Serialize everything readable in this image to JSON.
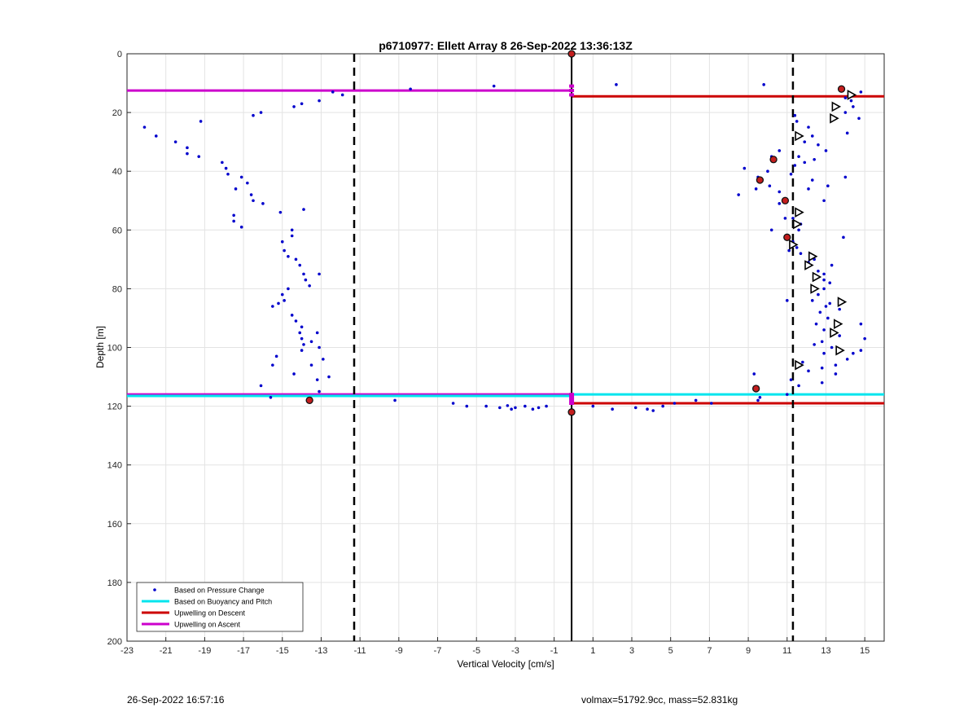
{
  "footer": {
    "timestamp": "26-Sep-2022 16:57:16",
    "volmax_mass": "volmax=51792.9cc, mass=52.831kg"
  },
  "chart_data": {
    "type": "scatter",
    "title": "p6710977: Ellett Array 8 26-Sep-2022 13:36:13Z",
    "xlabel": "Vertical Velocity [cm/s]",
    "ylabel": "Depth [m]",
    "xlim": [
      -23,
      16
    ],
    "ylim": [
      0,
      200
    ],
    "y_reversed": true,
    "grid": true,
    "xticks": [
      -23,
      -21,
      -19,
      -17,
      -15,
      -13,
      -11,
      -9,
      -7,
      -5,
      -3,
      -1,
      1,
      3,
      5,
      7,
      9,
      11,
      13,
      15
    ],
    "yticks": [
      0,
      20,
      40,
      60,
      80,
      100,
      120,
      140,
      160,
      180,
      200
    ],
    "legend": {
      "placement": "bottom-left",
      "entries": [
        {
          "label": "Based on Pressure Change",
          "color": "#0000cc",
          "style": "dot"
        },
        {
          "label": "Based on Buoyancy and Pitch",
          "color": "#00e5ee",
          "style": "line"
        },
        {
          "label": "Upwelling on Descent",
          "color": "#cc0000",
          "style": "line"
        },
        {
          "label": "Upwelling on Ascent",
          "color": "#cc00cc",
          "style": "line"
        }
      ]
    },
    "colors": {
      "pressure": "#0000cc",
      "buoyancy": "#00e5ee",
      "descent": "#cc0000",
      "ascent": "#cc00cc"
    },
    "pressure_points": [
      [
        -22.1,
        25
      ],
      [
        -21.5,
        28
      ],
      [
        -20.5,
        30
      ],
      [
        -19.9,
        32
      ],
      [
        -19.9,
        34
      ],
      [
        -19.3,
        35
      ],
      [
        -19.2,
        23
      ],
      [
        -18.1,
        37
      ],
      [
        -17.9,
        39
      ],
      [
        -17.8,
        41
      ],
      [
        -17.4,
        46
      ],
      [
        -17.1,
        42
      ],
      [
        -16.8,
        44
      ],
      [
        -16.6,
        48
      ],
      [
        -16.5,
        50
      ],
      [
        -16.0,
        51
      ],
      [
        -17.5,
        55
      ],
      [
        -17.5,
        57
      ],
      [
        -17.1,
        59
      ],
      [
        -16.5,
        21
      ],
      [
        -16.1,
        20
      ],
      [
        -15.1,
        54
      ],
      [
        -15.0,
        64
      ],
      [
        -14.9,
        67
      ],
      [
        -14.5,
        62
      ],
      [
        -14.5,
        60
      ],
      [
        -14.7,
        69
      ],
      [
        -14.3,
        70
      ],
      [
        -14.1,
        72
      ],
      [
        -13.9,
        75
      ],
      [
        -13.8,
        77
      ],
      [
        -13.6,
        79
      ],
      [
        -13.9,
        53
      ],
      [
        -13.1,
        75
      ],
      [
        -15.0,
        82
      ],
      [
        -14.7,
        80
      ],
      [
        -14.9,
        84
      ],
      [
        -15.2,
        85
      ],
      [
        -15.5,
        86
      ],
      [
        -14.5,
        89
      ],
      [
        -14.3,
        91
      ],
      [
        -14.0,
        93
      ],
      [
        -14.1,
        95
      ],
      [
        -14.0,
        97
      ],
      [
        -13.9,
        99
      ],
      [
        -14.0,
        101
      ],
      [
        -13.5,
        98
      ],
      [
        -13.2,
        95
      ],
      [
        -13.1,
        100
      ],
      [
        -12.9,
        104
      ],
      [
        -13.5,
        106
      ],
      [
        -15.3,
        103
      ],
      [
        -15.5,
        106
      ],
      [
        -14.4,
        109
      ],
      [
        -12.6,
        110
      ],
      [
        -13.2,
        111
      ],
      [
        -16.1,
        113
      ],
      [
        -13.1,
        115
      ],
      [
        -15.6,
        117
      ],
      [
        -14.4,
        18
      ],
      [
        -14.0,
        17
      ],
      [
        -13.1,
        16
      ],
      [
        -12.4,
        13
      ],
      [
        -11.9,
        14
      ],
      [
        -8.4,
        12
      ],
      [
        -4.1,
        11
      ],
      [
        2.2,
        10.5
      ],
      [
        9.8,
        10.5
      ],
      [
        -9.2,
        118
      ],
      [
        -6.2,
        119
      ],
      [
        -5.5,
        120
      ],
      [
        -4.5,
        120
      ],
      [
        -3.8,
        120.5
      ],
      [
        -3.4,
        119.8
      ],
      [
        -3.2,
        121
      ],
      [
        -3.0,
        120.5
      ],
      [
        -2.5,
        120
      ],
      [
        -2.1,
        121
      ],
      [
        -1.8,
        120.5
      ],
      [
        -1.4,
        120
      ],
      [
        1.0,
        120
      ],
      [
        2.0,
        121
      ],
      [
        3.2,
        120.5
      ],
      [
        3.8,
        121
      ],
      [
        4.1,
        121.5
      ],
      [
        4.6,
        120
      ],
      [
        5.2,
        119
      ],
      [
        6.3,
        118
      ],
      [
        7.1,
        119
      ],
      [
        11.4,
        21
      ],
      [
        11.5,
        23
      ],
      [
        12.1,
        25
      ],
      [
        12.3,
        28
      ],
      [
        12.6,
        31
      ],
      [
        13.0,
        33
      ],
      [
        12.4,
        36
      ],
      [
        11.9,
        37
      ],
      [
        11.4,
        38
      ],
      [
        10.6,
        33
      ],
      [
        10.2,
        35
      ],
      [
        10.0,
        40
      ],
      [
        8.8,
        39
      ],
      [
        9.5,
        42
      ],
      [
        9.4,
        46
      ],
      [
        8.5,
        48
      ],
      [
        10.1,
        45
      ],
      [
        10.6,
        47
      ],
      [
        10.6,
        51
      ],
      [
        11.0,
        50
      ],
      [
        11.3,
        56
      ],
      [
        11.4,
        58
      ],
      [
        11.0,
        62
      ],
      [
        11.3,
        64
      ],
      [
        11.5,
        66
      ],
      [
        11.1,
        67
      ],
      [
        11.7,
        68
      ],
      [
        12.4,
        70
      ],
      [
        12.1,
        71
      ],
      [
        12.6,
        74
      ],
      [
        12.9,
        75
      ],
      [
        13.3,
        72
      ],
      [
        12.9,
        77
      ],
      [
        13.2,
        78
      ],
      [
        12.9,
        80
      ],
      [
        12.6,
        82
      ],
      [
        12.3,
        84
      ],
      [
        13.2,
        85
      ],
      [
        13.0,
        86
      ],
      [
        12.7,
        88
      ],
      [
        13.7,
        87
      ],
      [
        13.1,
        90
      ],
      [
        12.5,
        92
      ],
      [
        12.9,
        94
      ],
      [
        13.7,
        96
      ],
      [
        12.8,
        98
      ],
      [
        12.4,
        99
      ],
      [
        13.3,
        100
      ],
      [
        12.9,
        102
      ],
      [
        14.4,
        102
      ],
      [
        14.8,
        101
      ],
      [
        14.1,
        104
      ],
      [
        13.5,
        106
      ],
      [
        12.8,
        107
      ],
      [
        12.1,
        108
      ],
      [
        11.8,
        105
      ],
      [
        11.2,
        111
      ],
      [
        11.6,
        113
      ],
      [
        11.0,
        116
      ],
      [
        14.8,
        92
      ],
      [
        15.0,
        97
      ],
      [
        13.5,
        109
      ],
      [
        12.8,
        112
      ],
      [
        11.0,
        84
      ],
      [
        9.6,
        117
      ],
      [
        9.3,
        109
      ],
      [
        9.5,
        118
      ],
      [
        11.9,
        30
      ],
      [
        14.3,
        16
      ],
      [
        14.4,
        18
      ],
      [
        14.0,
        20
      ],
      [
        14.1,
        27
      ],
      [
        14.8,
        13
      ],
      [
        14.7,
        22
      ],
      [
        14.0,
        15
      ],
      [
        11.6,
        35
      ],
      [
        11.2,
        41
      ],
      [
        12.3,
        43
      ],
      [
        12.1,
        46
      ],
      [
        10.9,
        56
      ],
      [
        11.7,
        58
      ],
      [
        13.9,
        62.5
      ],
      [
        14.0,
        42
      ],
      [
        13.1,
        45
      ],
      [
        12.9,
        50
      ],
      [
        10.2,
        60
      ],
      [
        11.6,
        60
      ]
    ],
    "red_markers": [
      [
        -0.1,
        0
      ],
      [
        13.8,
        12
      ],
      [
        10.3,
        36
      ],
      [
        9.6,
        43
      ],
      [
        10.9,
        50
      ],
      [
        11.0,
        62.5
      ],
      [
        9.4,
        114
      ],
      [
        -13.6,
        118
      ],
      [
        -0.1,
        122
      ]
    ],
    "triangle_markers": [
      [
        14.3,
        14
      ],
      [
        13.5,
        18
      ],
      [
        13.4,
        22
      ],
      [
        11.6,
        28
      ],
      [
        11.6,
        54
      ],
      [
        11.5,
        58
      ],
      [
        11.3,
        65
      ],
      [
        12.3,
        69
      ],
      [
        12.1,
        72
      ],
      [
        12.5,
        76
      ],
      [
        12.4,
        80
      ],
      [
        13.8,
        84.5
      ],
      [
        13.6,
        92
      ],
      [
        13.4,
        95
      ],
      [
        13.7,
        101
      ],
      [
        11.6,
        106
      ]
    ],
    "pink_markers": [
      [
        -0.1,
        11
      ],
      [
        -0.1,
        12.5
      ],
      [
        -0.1,
        14
      ],
      [
        -0.1,
        116
      ],
      [
        -0.1,
        117
      ],
      [
        -0.1,
        118
      ],
      [
        -0.1,
        119
      ]
    ],
    "hlines": [
      {
        "series": "ascent",
        "y": 12.5,
        "x": [
          -23,
          -0.1
        ]
      },
      {
        "series": "descent",
        "y": 14.5,
        "x": [
          -0.1,
          16
        ]
      },
      {
        "series": "ascent",
        "y": 116,
        "x": [
          -23,
          -0.1
        ]
      },
      {
        "series": "buoyancy",
        "y": 116.5,
        "x": [
          -23,
          -0.1
        ]
      },
      {
        "series": "buoyancy",
        "y": 116,
        "x": [
          -0.1,
          16
        ]
      },
      {
        "series": "descent",
        "y": 119,
        "x": [
          -0.1,
          16
        ]
      }
    ],
    "vlines": [
      {
        "x": -0.1,
        "style": "solid"
      },
      {
        "x": -11.3,
        "style": "dashed"
      },
      {
        "x": 11.3,
        "style": "dashed"
      }
    ]
  }
}
